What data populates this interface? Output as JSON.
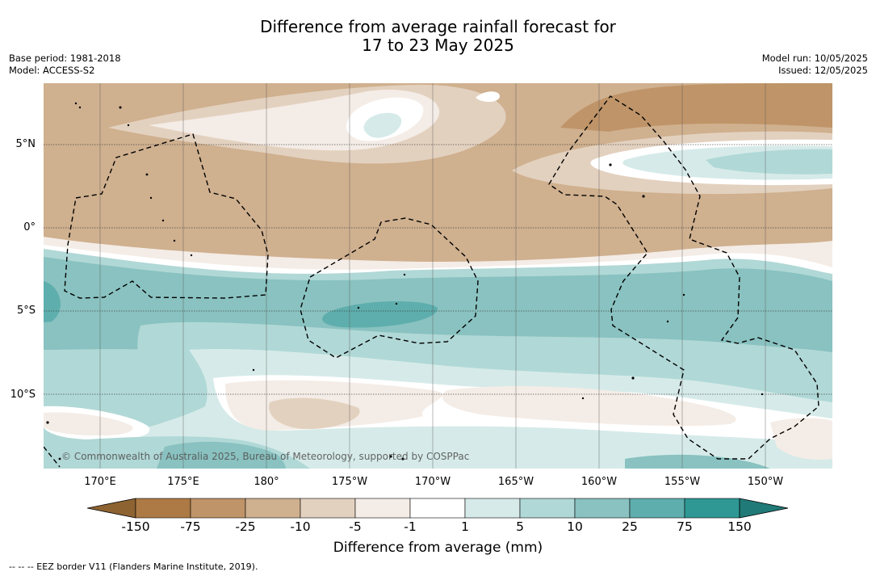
{
  "title": {
    "line1": "Difference from average rainfall forecast for",
    "line2": "17 to 23 May 2025"
  },
  "meta": {
    "base_period": "Base period: 1981-2018",
    "model": "Model: ACCESS-S2",
    "model_run": "Model run: 10/05/2025",
    "issued": "Issued: 12/05/2025"
  },
  "copyright": "© Commonwealth of Australia 2025, Bureau of Meteorology, supported by COSPPac",
  "axes": {
    "lat_labels": [
      "5°N",
      "0°",
      "5°S",
      "10°S"
    ],
    "lon_labels": [
      "170°E",
      "175°E",
      "180°",
      "175°W",
      "170°W",
      "165°W",
      "160°W",
      "155°W",
      "150°W"
    ]
  },
  "colorbar": {
    "title": "Difference from average (mm)",
    "ticks": [
      "-150",
      "-75",
      "-25",
      "-10",
      "-5",
      "-1",
      "1",
      "5",
      "10",
      "25",
      "75",
      "150"
    ],
    "colors": {
      "below_min": "#8e6332",
      "bins": [
        "#ad7a45",
        "#bf9468",
        "#cfb08f",
        "#e3d1bf",
        "#f4ece6",
        "#ffffff",
        "#d6ebe9",
        "#b0d8d6",
        "#89c2c0",
        "#5eaead",
        "#2f9894"
      ],
      "above_max": "#207a77"
    }
  },
  "legend_footnote": "--  --  -- EEZ border V11 (Flanders Marine Institute, 2019)."
}
